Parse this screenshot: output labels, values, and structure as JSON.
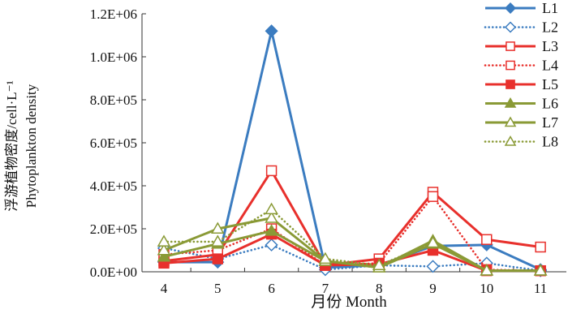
{
  "chart_data": {
    "type": "line",
    "title": "",
    "xlabel": "月份 Month",
    "ylabel_cn": "浮游植物密度/cell·L⁻¹",
    "ylabel_en": "Phytoplankton density",
    "categories": [
      "4",
      "5",
      "6",
      "7",
      "8",
      "9",
      "10",
      "11"
    ],
    "ylim": [
      0,
      1200000
    ],
    "yticks": [
      0,
      200000,
      400000,
      600000,
      800000,
      1000000,
      1200000
    ],
    "ytick_labels": [
      "0.0E+00",
      "2.0E+05",
      "4.0E+05",
      "6.0E+05",
      "8.0E+05",
      "1.0E+06",
      "1.2E+06"
    ],
    "legend_position": "top-right",
    "series": [
      {
        "name": "L1",
        "color": "#3b7cc0",
        "dash": false,
        "marker": "diamond",
        "filled": true,
        "values": [
          45000,
          45000,
          1120000,
          20000,
          30000,
          120000,
          125000,
          10000
        ]
      },
      {
        "name": "L2",
        "color": "#3b7cc0",
        "dash": true,
        "marker": "diamond",
        "filled": false,
        "values": [
          110000,
          60000,
          125000,
          10000,
          30000,
          25000,
          40000,
          5000
        ]
      },
      {
        "name": "L3",
        "color": "#e8302c",
        "dash": false,
        "marker": "square",
        "filled": false,
        "values": [
          50000,
          80000,
          470000,
          30000,
          60000,
          370000,
          150000,
          115000
        ]
      },
      {
        "name": "L4",
        "color": "#e8302c",
        "dash": true,
        "marker": "square",
        "filled": false,
        "values": [
          80000,
          100000,
          200000,
          30000,
          40000,
          350000,
          10000,
          5000
        ]
      },
      {
        "name": "L5",
        "color": "#e8302c",
        "dash": false,
        "marker": "square",
        "filled": true,
        "values": [
          40000,
          60000,
          175000,
          30000,
          35000,
          100000,
          5000,
          5000
        ]
      },
      {
        "name": "L6",
        "color": "#8a9a36",
        "dash": false,
        "marker": "triangle",
        "filled": true,
        "values": [
          70000,
          130000,
          190000,
          50000,
          20000,
          145000,
          5000,
          5000
        ]
      },
      {
        "name": "L7",
        "color": "#8a9a36",
        "dash": false,
        "marker": "triangle",
        "filled": false,
        "values": [
          100000,
          200000,
          250000,
          50000,
          20000,
          130000,
          5000,
          5000
        ]
      },
      {
        "name": "L8",
        "color": "#8a9a36",
        "dash": true,
        "marker": "triangle",
        "filled": false,
        "values": [
          140000,
          140000,
          290000,
          60000,
          30000,
          135000,
          5000,
          5000
        ]
      }
    ]
  }
}
